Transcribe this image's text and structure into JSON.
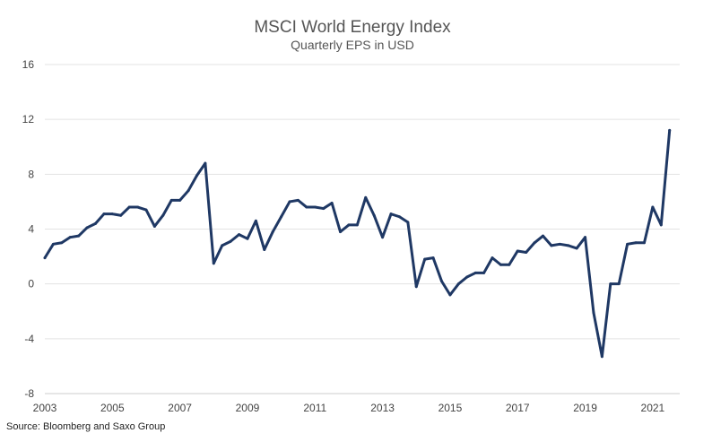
{
  "chart_data": {
    "type": "line",
    "title": "MSCI World Energy Index",
    "subtitle": "Quarterly EPS in USD",
    "xlabel": "",
    "ylabel": "",
    "ylim": [
      -8,
      16
    ],
    "yticks": [
      16,
      12,
      8,
      4,
      0,
      -4,
      -8
    ],
    "xlim": [
      2003,
      2021.8
    ],
    "xticks": [
      2003,
      2005,
      2007,
      2009,
      2011,
      2013,
      2015,
      2017,
      2019,
      2021
    ],
    "grid": true,
    "legend": "none",
    "line_color": "#1f3864",
    "series": [
      {
        "x": [
          2003.0,
          2003.25,
          2003.5,
          2003.75,
          2004.0,
          2004.25,
          2004.5,
          2004.75,
          2005.0,
          2005.25,
          2005.5,
          2005.75,
          2006.0,
          2006.25,
          2006.5,
          2006.75,
          2007.0,
          2007.25,
          2007.5,
          2007.75,
          2008.0,
          2008.25,
          2008.5,
          2008.75,
          2009.0,
          2009.25,
          2009.5,
          2009.75,
          2010.0,
          2010.25,
          2010.5,
          2010.75,
          2011.0,
          2011.25,
          2011.5,
          2011.75,
          2012.0,
          2012.25,
          2012.5,
          2012.75,
          2013.0,
          2013.25,
          2013.5,
          2013.75,
          2014.0,
          2014.25,
          2014.5,
          2014.75,
          2015.0,
          2015.25,
          2015.5,
          2015.75,
          2016.0,
          2016.25,
          2016.5,
          2016.75,
          2017.0,
          2017.25,
          2017.5,
          2017.75,
          2018.0,
          2018.25,
          2018.5,
          2018.75,
          2019.0,
          2019.25,
          2019.5,
          2019.75,
          2020.0,
          2020.25,
          2020.5,
          2020.75,
          2021.0,
          2021.25,
          2021.5
        ],
        "values": [
          1.9,
          2.9,
          3.0,
          3.4,
          3.5,
          4.1,
          4.4,
          5.1,
          5.1,
          5.0,
          5.6,
          5.6,
          5.4,
          4.2,
          5.0,
          6.1,
          6.1,
          6.8,
          7.9,
          8.8,
          1.5,
          2.8,
          3.1,
          3.6,
          3.3,
          4.6,
          2.5,
          3.8,
          4.9,
          6.0,
          6.1,
          5.6,
          5.6,
          5.5,
          5.9,
          3.8,
          4.3,
          4.3,
          6.3,
          5.0,
          3.4,
          5.1,
          4.9,
          4.5,
          -0.2,
          1.8,
          1.9,
          0.2,
          -0.8,
          0.0,
          0.5,
          0.8,
          0.8,
          1.9,
          1.4,
          1.4,
          2.4,
          2.3,
          3.0,
          3.5,
          2.8,
          2.9,
          2.8,
          2.6,
          3.4,
          -2.1,
          -5.3,
          0.0,
          0.0,
          2.9,
          3.0,
          3.0,
          5.6,
          4.3,
          11.2
        ]
      }
    ]
  },
  "source": "Source: Bloomberg and Saxo Group"
}
